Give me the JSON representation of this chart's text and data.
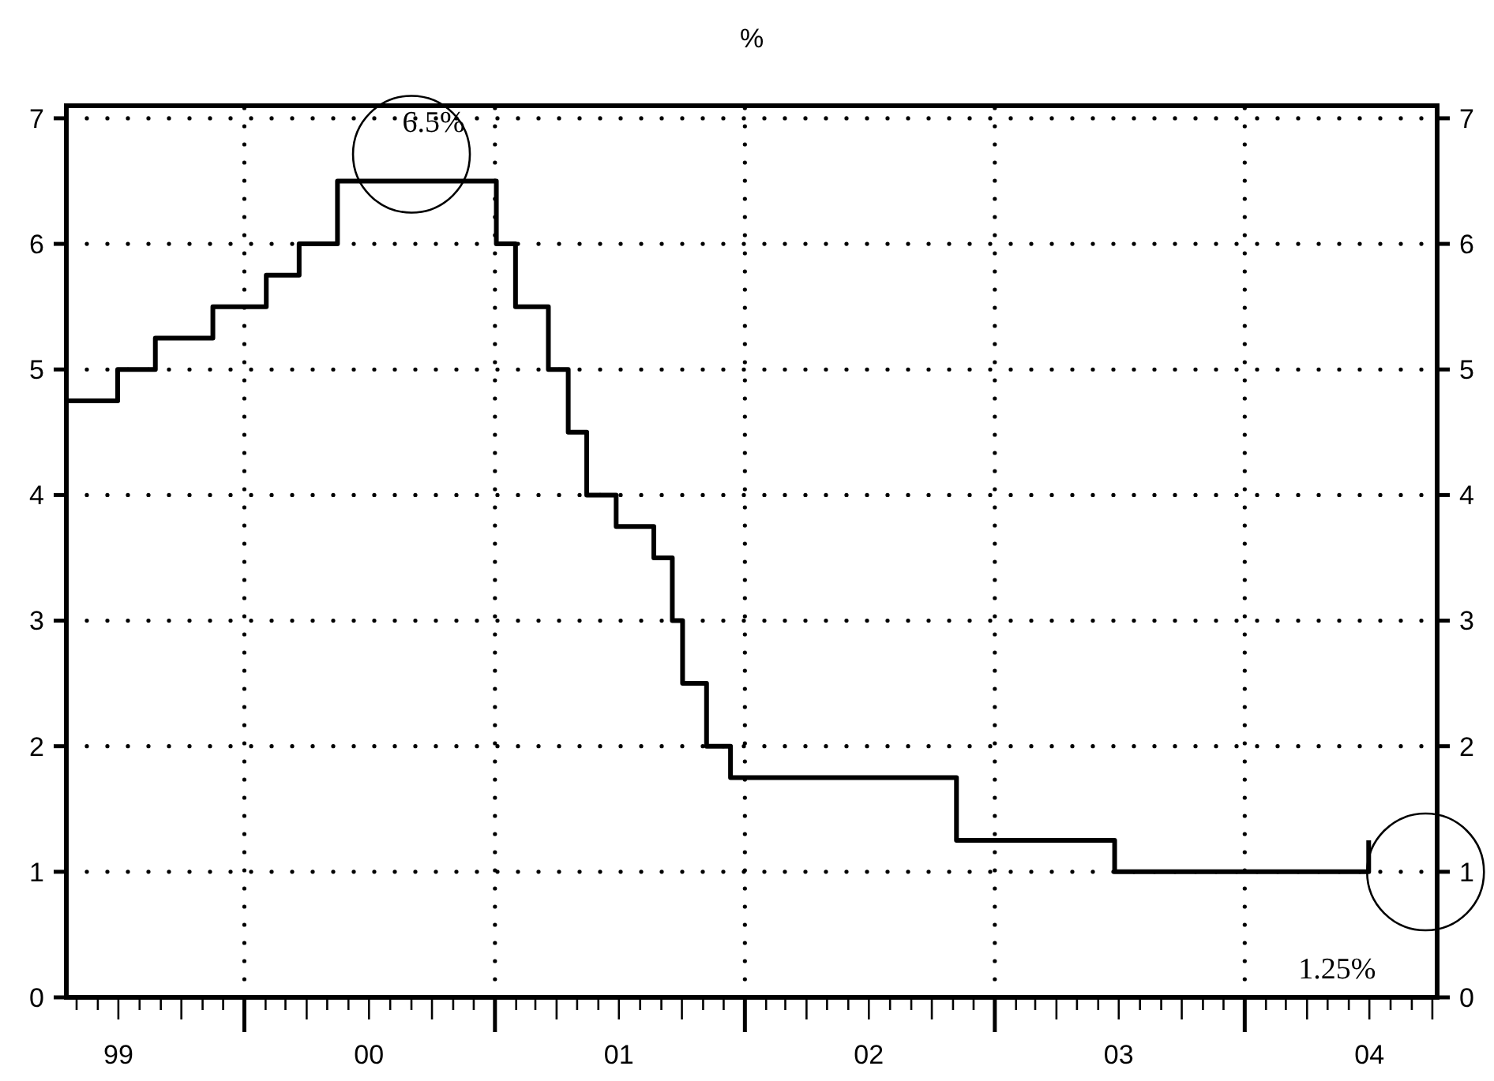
{
  "chart_data": {
    "type": "step",
    "title": "%",
    "x": [
      "1999-04-16",
      "1999-06-30",
      "1999-08-24",
      "1999-11-16",
      "2000-02-02",
      "2000-03-21",
      "2000-05-16",
      "2001-01-03",
      "2001-01-31",
      "2001-03-20",
      "2001-04-18",
      "2001-05-15",
      "2001-06-27",
      "2001-08-21",
      "2001-09-17",
      "2001-10-02",
      "2001-11-06",
      "2001-12-11",
      "2002-11-06",
      "2003-06-25",
      "2004-06-30"
    ],
    "series": [
      {
        "color": "#000000",
        "values": [
          4.75,
          5.0,
          5.25,
          5.5,
          5.75,
          6.0,
          6.5,
          6.0,
          5.5,
          5.0,
          4.5,
          4.0,
          3.75,
          3.5,
          3.0,
          2.5,
          2.0,
          1.75,
          1.25,
          1.0,
          1.25
        ]
      }
    ],
    "xlim": [
      "1999-04-16",
      "2004-10-08"
    ],
    "xticks": [
      {
        "value": "1999-05-01",
        "label": null
      },
      {
        "value": "1999-06-01",
        "label": null
      },
      {
        "value": "1999-07-01",
        "label": "99"
      },
      {
        "value": "1999-08-01",
        "label": null
      },
      {
        "value": "1999-09-01",
        "label": null
      },
      {
        "value": "1999-10-01",
        "label": null
      },
      {
        "value": "1999-11-01",
        "label": null
      },
      {
        "value": "1999-12-01",
        "label": null
      },
      {
        "value": "2000-01-01",
        "label": null
      },
      {
        "value": "2000-02-01",
        "label": null
      },
      {
        "value": "2000-03-01",
        "label": null
      },
      {
        "value": "2000-04-01",
        "label": null
      },
      {
        "value": "2000-05-01",
        "label": null
      },
      {
        "value": "2000-06-01",
        "label": null
      },
      {
        "value": "2000-07-01",
        "label": "00"
      },
      {
        "value": "2000-08-01",
        "label": null
      },
      {
        "value": "2000-09-01",
        "label": null
      },
      {
        "value": "2000-10-01",
        "label": null
      },
      {
        "value": "2000-11-01",
        "label": null
      },
      {
        "value": "2000-12-01",
        "label": null
      },
      {
        "value": "2001-01-01",
        "label": null
      },
      {
        "value": "2001-02-01",
        "label": null
      },
      {
        "value": "2001-03-01",
        "label": null
      },
      {
        "value": "2001-04-01",
        "label": null
      },
      {
        "value": "2001-05-01",
        "label": null
      },
      {
        "value": "2001-06-01",
        "label": null
      },
      {
        "value": "2001-07-01",
        "label": "01"
      },
      {
        "value": "2001-08-01",
        "label": null
      },
      {
        "value": "2001-09-01",
        "label": null
      },
      {
        "value": "2001-10-01",
        "label": null
      },
      {
        "value": "2001-11-01",
        "label": null
      },
      {
        "value": "2001-12-01",
        "label": null
      },
      {
        "value": "2002-01-01",
        "label": null
      },
      {
        "value": "2002-02-01",
        "label": null
      },
      {
        "value": "2002-03-01",
        "label": null
      },
      {
        "value": "2002-04-01",
        "label": null
      },
      {
        "value": "2002-05-01",
        "label": null
      },
      {
        "value": "2002-06-01",
        "label": null
      },
      {
        "value": "2002-07-01",
        "label": "02"
      },
      {
        "value": "2002-08-01",
        "label": null
      },
      {
        "value": "2002-09-01",
        "label": null
      },
      {
        "value": "2002-10-01",
        "label": null
      },
      {
        "value": "2002-11-01",
        "label": null
      },
      {
        "value": "2002-12-01",
        "label": null
      },
      {
        "value": "2003-01-01",
        "label": null
      },
      {
        "value": "2003-02-01",
        "label": null
      },
      {
        "value": "2003-03-01",
        "label": null
      },
      {
        "value": "2003-04-01",
        "label": null
      },
      {
        "value": "2003-05-01",
        "label": null
      },
      {
        "value": "2003-06-01",
        "label": null
      },
      {
        "value": "2003-07-01",
        "label": "03"
      },
      {
        "value": "2003-08-01",
        "label": null
      },
      {
        "value": "2003-09-01",
        "label": null
      },
      {
        "value": "2003-10-01",
        "label": null
      },
      {
        "value": "2003-11-01",
        "label": null
      },
      {
        "value": "2003-12-01",
        "label": null
      },
      {
        "value": "2004-01-01",
        "label": null
      },
      {
        "value": "2004-02-01",
        "label": null
      },
      {
        "value": "2004-03-01",
        "label": null
      },
      {
        "value": "2004-04-01",
        "label": null
      },
      {
        "value": "2004-05-01",
        "label": null
      },
      {
        "value": "2004-06-01",
        "label": null
      },
      {
        "value": "2004-07-01",
        "label": "04"
      },
      {
        "value": "2004-08-01",
        "label": null
      },
      {
        "value": "2004-09-01",
        "label": null
      },
      {
        "value": "2004-10-01",
        "label": null
      }
    ],
    "ylim": [
      0,
      7.1
    ],
    "yticks": [
      0,
      1,
      2,
      3,
      4,
      5,
      6,
      7
    ],
    "y2lim": [
      0,
      7.1
    ],
    "y2ticks": [
      0,
      1,
      2,
      3,
      4,
      5,
      6,
      7
    ],
    "grid": true,
    "line_style": "solid",
    "annotations": [
      {
        "text": "6.5%",
        "x": "2000-10-01",
        "y": 6.5
      },
      "1.25%"
    ]
  }
}
